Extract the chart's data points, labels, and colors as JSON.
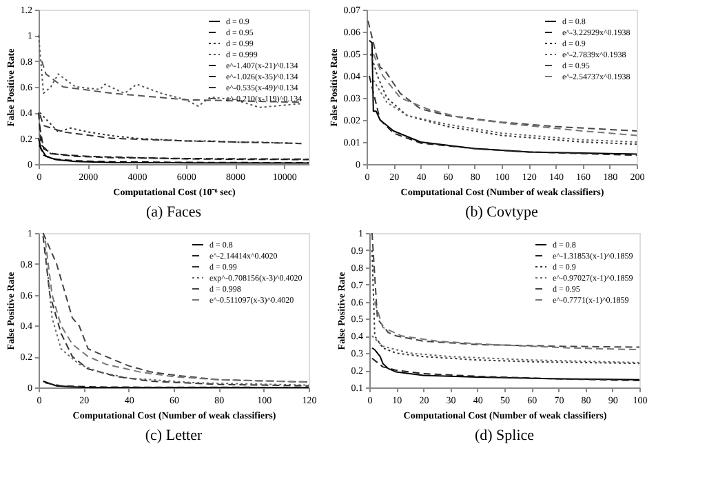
{
  "chart_data": [
    {
      "type": "line",
      "title": "(a)  Faces",
      "xlabel": "Computational Cost (10⁻⁶ sec)",
      "ylabel": "False Positive Rate",
      "xlim": [
        0,
        11000
      ],
      "xticks": [
        0,
        2000,
        4000,
        6000,
        8000,
        10000
      ],
      "ylim": [
        0,
        1.2
      ],
      "yticks": [
        0,
        0.2,
        0.4,
        0.6,
        0.8,
        1,
        1.2
      ],
      "grid": false,
      "legend": "top right",
      "marker": "none",
      "series": [
        {
          "name": "d = 0.9",
          "color": "#000000",
          "line_style": "solid",
          "x": [
            0,
            100,
            300,
            700,
            1500,
            3000,
            6000,
            11000
          ],
          "values": [
            0.2,
            0.12,
            0.06,
            0.035,
            0.02,
            0.012,
            0.01,
            0.008
          ]
        },
        {
          "name": "d = 0.95",
          "color": "#222222",
          "line_style": "dashed",
          "x": [
            0,
            100,
            500,
            2000,
            4000,
            6000,
            8000,
            11000
          ],
          "values": [
            0.4,
            0.15,
            0.08,
            0.06,
            0.05,
            0.04,
            0.037,
            0.035
          ]
        },
        {
          "name": "d = 0.99",
          "color": "#333333",
          "line_style": "dotted",
          "x": [
            50,
            300,
            800,
            1300,
            2000,
            3000,
            4000,
            5000,
            6000,
            7000,
            8000,
            9000,
            10700
          ],
          "values": [
            0.4,
            0.35,
            0.25,
            0.28,
            0.25,
            0.22,
            0.2,
            0.19,
            0.18,
            0.18,
            0.17,
            0.17,
            0.16
          ]
        },
        {
          "name": "d = 0.999",
          "color": "#555555",
          "line_style": "dotted",
          "x": [
            0,
            200,
            500,
            800,
            1500,
            2500,
            2700,
            3500,
            4000,
            5000,
            6000,
            6500,
            7000,
            8000,
            9000,
            10700
          ],
          "values": [
            1.0,
            0.55,
            0.6,
            0.7,
            0.6,
            0.58,
            0.62,
            0.55,
            0.62,
            0.55,
            0.5,
            0.45,
            0.52,
            0.5,
            0.44,
            0.47
          ]
        },
        {
          "name": "e^-1.407(x-21)^0.134",
          "color": "#000000",
          "line_style": "dashed",
          "x": [
            30,
            200,
            600,
            1500,
            3000,
            6000,
            11000
          ],
          "values": [
            0.15,
            0.07,
            0.04,
            0.025,
            0.018,
            0.013,
            0.01
          ]
        },
        {
          "name": "e^-1.026(x-35)^0.134",
          "color": "#222222",
          "line_style": "dashed",
          "x": [
            40,
            200,
            600,
            1500,
            3000,
            6000,
            11000
          ],
          "values": [
            0.3,
            0.12,
            0.08,
            0.06,
            0.05,
            0.043,
            0.038
          ]
        },
        {
          "name": "e^-0.535(x-49)^0.134",
          "color": "#333333",
          "line_style": "dashed",
          "x": [
            60,
            200,
            1000,
            3000,
            6000,
            10700
          ],
          "values": [
            0.38,
            0.3,
            0.25,
            0.2,
            0.18,
            0.16
          ]
        },
        {
          "name": "e^-0.210(x-119)^0.134",
          "color": "#555555",
          "line_style": "dashed",
          "x": [
            130,
            300,
            1000,
            3000,
            6000,
            10700
          ],
          "values": [
            0.8,
            0.7,
            0.6,
            0.55,
            0.5,
            0.48
          ]
        }
      ]
    },
    {
      "type": "line",
      "title": "(b)  Covtype",
      "xlabel": "Computational Cost (Number of weak classifiers)",
      "ylabel": "False Positive Rate",
      "xlim": [
        0,
        200
      ],
      "xticks": [
        0,
        20,
        40,
        60,
        80,
        100,
        120,
        140,
        160,
        180,
        200
      ],
      "ylim": [
        0,
        0.07
      ],
      "yticks": [
        0,
        0.01,
        0.02,
        0.03,
        0.04,
        0.05,
        0.06,
        0.07
      ],
      "grid": false,
      "legend": "top right",
      "marker": "none",
      "series": [
        {
          "name": "d = 0.8",
          "color": "#000000",
          "line_style": "solid",
          "x": [
            2,
            4,
            5,
            7,
            10,
            20,
            40,
            80,
            120,
            200
          ],
          "values": [
            0.056,
            0.055,
            0.024,
            0.024,
            0.02,
            0.015,
            0.01,
            0.007,
            0.0055,
            0.0045
          ]
        },
        {
          "name": "e^-3.22929x^0.1938",
          "color": "#222222",
          "line_style": "dashed",
          "x": [
            2,
            10,
            20,
            40,
            80,
            120,
            200
          ],
          "values": [
            0.04,
            0.02,
            0.014,
            0.0095,
            0.007,
            0.0055,
            0.004
          ]
        },
        {
          "name": "d = 0.9",
          "color": "#333333",
          "line_style": "dotted",
          "x": [
            3,
            8,
            15,
            30,
            60,
            100,
            160,
            200
          ],
          "values": [
            0.05,
            0.04,
            0.03,
            0.022,
            0.017,
            0.013,
            0.01,
            0.009
          ]
        },
        {
          "name": "e^-2.7839x^0.1938",
          "color": "#666666",
          "line_style": "dotted",
          "x": [
            5,
            15,
            30,
            60,
            100,
            160,
            200
          ],
          "values": [
            0.038,
            0.028,
            0.022,
            0.018,
            0.014,
            0.011,
            0.01
          ]
        },
        {
          "name": "d = 0.95",
          "color": "#444444",
          "line_style": "dashed",
          "x": [
            1,
            7,
            10,
            14,
            25,
            40,
            60,
            100,
            140,
            200
          ],
          "values": [
            0.065,
            0.05,
            0.044,
            0.042,
            0.032,
            0.025,
            0.022,
            0.019,
            0.017,
            0.015
          ]
        },
        {
          "name": "e^-2.54737x^0.1938",
          "color": "#777777",
          "line_style": "dashed",
          "x": [
            5,
            12,
            25,
            45,
            70,
            110,
            160,
            200
          ],
          "values": [
            0.05,
            0.04,
            0.03,
            0.025,
            0.021,
            0.018,
            0.015,
            0.013
          ]
        }
      ]
    },
    {
      "type": "line",
      "title": "(c)  Letter",
      "xlabel": "Computational Cost (Number of weak classifiers)",
      "ylabel": "False Positive Rate",
      "xlim": [
        0,
        120
      ],
      "xticks": [
        0,
        20,
        40,
        60,
        80,
        100,
        120
      ],
      "ylim": [
        0,
        1
      ],
      "yticks": [
        0,
        0.2,
        0.4,
        0.6,
        0.8,
        1
      ],
      "grid": false,
      "legend": "top right",
      "marker": "none",
      "series": [
        {
          "name": "d = 0.8",
          "color": "#000000",
          "line_style": "solid",
          "x": [
            2,
            8,
            20,
            120
          ],
          "values": [
            0.04,
            0.01,
            0,
            0
          ]
        },
        {
          "name": "e^-2.14414x^0.4020",
          "color": "#222222",
          "line_style": "dashed",
          "x": [
            3,
            10,
            30,
            120
          ],
          "values": [
            0.03,
            0.01,
            0.002,
            0
          ]
        },
        {
          "name": "d = 0.99",
          "color": "#333333",
          "line_style": "dashed",
          "x": [
            2,
            5,
            10,
            15,
            22,
            35,
            50,
            80,
            120
          ],
          "values": [
            0.98,
            0.6,
            0.35,
            0.2,
            0.12,
            0.07,
            0.04,
            0.02,
            0.01
          ]
        },
        {
          "name": "exp^-0.708156(x-3)^0.4020",
          "color": "#666666",
          "line_style": "dotted",
          "x": [
            3,
            6,
            10,
            18,
            27,
            40,
            70,
            120
          ],
          "values": [
            0.9,
            0.45,
            0.25,
            0.15,
            0.1,
            0.06,
            0.03,
            0.015
          ]
        },
        {
          "name": "d = 0.998",
          "color": "#444444",
          "line_style": "dashed",
          "x": [
            2,
            8,
            12,
            15,
            18,
            22,
            30,
            40,
            50,
            60,
            80,
            120
          ],
          "values": [
            1.0,
            0.8,
            0.6,
            0.45,
            0.4,
            0.25,
            0.2,
            0.14,
            0.1,
            0.08,
            0.05,
            0.035
          ]
        },
        {
          "name": "e^-0.511097(x-3)^0.4020",
          "color": "#777777",
          "line_style": "dashed",
          "x": [
            3,
            6,
            10,
            15,
            22,
            30,
            45,
            60,
            80,
            120
          ],
          "values": [
            0.95,
            0.6,
            0.4,
            0.28,
            0.2,
            0.15,
            0.1,
            0.07,
            0.05,
            0.035
          ]
        }
      ]
    },
    {
      "type": "line",
      "title": "(d)  Splice",
      "xlabel": "Computational Cost (Number of weak classifiers)",
      "ylabel": "False Positive Rate",
      "xlim": [
        0,
        100
      ],
      "xticks": [
        0,
        10,
        20,
        30,
        40,
        50,
        60,
        70,
        80,
        90,
        100
      ],
      "ylim": [
        0.1,
        1
      ],
      "yticks": [
        0.1,
        0.2,
        0.3,
        0.4,
        0.5,
        0.6,
        0.7,
        0.8,
        0.9,
        1
      ],
      "grid": false,
      "legend": "top right",
      "marker": "none",
      "series": [
        {
          "name": "d = 0.8",
          "color": "#000000",
          "line_style": "solid",
          "x": [
            1,
            2,
            4,
            5,
            7,
            10,
            20,
            40,
            70,
            100
          ],
          "values": [
            0.33,
            0.32,
            0.28,
            0.24,
            0.21,
            0.19,
            0.17,
            0.16,
            0.15,
            0.145
          ]
        },
        {
          "name": "e^-1.31853(x-1)^0.1859",
          "color": "#222222",
          "line_style": "dashed",
          "x": [
            1,
            5,
            10,
            20,
            40,
            70,
            100
          ],
          "values": [
            0.27,
            0.22,
            0.2,
            0.18,
            0.165,
            0.15,
            0.14
          ]
        },
        {
          "name": "d = 0.9",
          "color": "#333333",
          "line_style": "dotted",
          "x": [
            1,
            2,
            5,
            10,
            20,
            40,
            60,
            100
          ],
          "values": [
            0.9,
            0.4,
            0.33,
            0.3,
            0.28,
            0.26,
            0.25,
            0.24
          ]
        },
        {
          "name": "e^-0.97027(x-1)^0.1859",
          "color": "#666666",
          "line_style": "dotted",
          "x": [
            1,
            5,
            15,
            30,
            60,
            100
          ],
          "values": [
            0.4,
            0.34,
            0.3,
            0.28,
            0.26,
            0.245
          ]
        },
        {
          "name": "d = 0.95",
          "color": "#444444",
          "line_style": "dashed",
          "x": [
            1,
            3,
            5,
            7,
            10,
            20,
            40,
            70,
            100
          ],
          "values": [
            1.0,
            0.5,
            0.46,
            0.42,
            0.4,
            0.37,
            0.35,
            0.34,
            0.335
          ]
        },
        {
          "name": "e^-0.7771(x-1)^0.1859",
          "color": "#777777",
          "line_style": "dashed",
          "x": [
            2,
            5,
            12,
            25,
            45,
            75,
            100
          ],
          "values": [
            0.6,
            0.45,
            0.4,
            0.37,
            0.35,
            0.33,
            0.32
          ]
        }
      ]
    }
  ]
}
